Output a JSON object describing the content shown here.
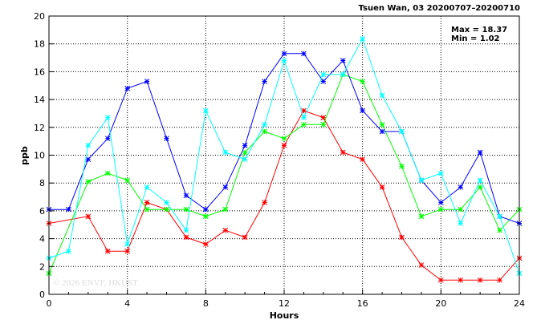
{
  "header": {
    "title": "Tsuen Wan, 03 20200707–20200710"
  },
  "stats": {
    "max_label": "Max = 18.37",
    "min_label": "Min =  1.02"
  },
  "watermark": "© 2026  ENVF, HKUST",
  "chart_data": {
    "type": "line",
    "xlabel": "Hours",
    "ylabel": "ppb",
    "xlim": [
      0,
      24
    ],
    "ylim": [
      0,
      20
    ],
    "xticks": [
      0,
      4,
      8,
      12,
      16,
      20,
      24
    ],
    "yticks": [
      0,
      2,
      4,
      6,
      8,
      10,
      12,
      14,
      16,
      18,
      20
    ],
    "grid": true,
    "x": [
      0,
      1,
      2,
      3,
      4,
      5,
      6,
      7,
      8,
      9,
      10,
      11,
      12,
      13,
      14,
      15,
      16,
      17,
      18,
      19,
      20,
      21,
      22,
      23,
      24
    ],
    "series": [
      {
        "color": "#ff0000",
        "values": [
          5.1,
          null,
          5.6,
          3.1,
          3.1,
          6.6,
          6.1,
          4.1,
          3.6,
          4.6,
          4.1,
          6.6,
          10.7,
          13.2,
          12.7,
          10.2,
          9.7,
          7.7,
          4.1,
          2.1,
          1.02,
          1.02,
          1.02,
          1.02,
          2.6
        ]
      },
      {
        "color": "#00ff00",
        "values": [
          1.5,
          null,
          8.1,
          8.7,
          8.2,
          6.1,
          6.1,
          6.1,
          5.6,
          6.1,
          10.2,
          11.7,
          11.2,
          12.2,
          12.2,
          15.8,
          15.3,
          12.2,
          9.2,
          5.6,
          6.1,
          6.1,
          7.7,
          4.6,
          6.1
        ]
      },
      {
        "color": "#0000ff",
        "values": [
          6.1,
          6.1,
          9.7,
          11.2,
          14.8,
          15.3,
          11.2,
          7.1,
          6.1,
          7.7,
          10.7,
          15.3,
          17.3,
          17.3,
          15.3,
          16.8,
          13.2,
          11.7,
          11.7,
          8.2,
          6.6,
          7.7,
          10.2,
          5.6,
          5.1
        ]
      },
      {
        "color": "#00ffff",
        "values": [
          2.6,
          3.1,
          10.7,
          12.7,
          3.6,
          7.7,
          6.6,
          4.6,
          13.2,
          10.2,
          9.7,
          12.2,
          16.8,
          12.7,
          15.8,
          15.8,
          18.37,
          14.3,
          11.7,
          8.2,
          8.7,
          5.1,
          8.2,
          5.6,
          1.5
        ]
      }
    ]
  }
}
